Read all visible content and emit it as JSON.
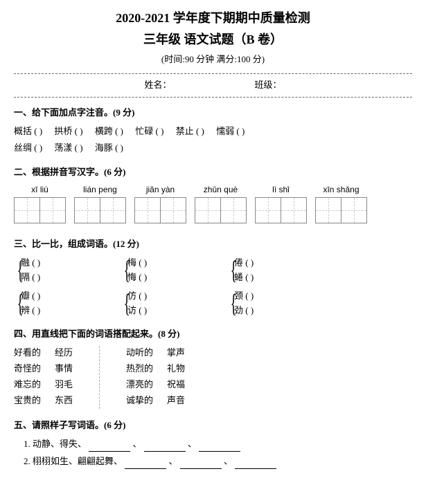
{
  "header": {
    "title1": "2020-2021 学年度下期期中质量检测",
    "title2": "三年级 语文试题（B 卷）",
    "meta": "(时间:90 分钟  满分:100 分)",
    "name_label": "姓名：",
    "class_label": "班级："
  },
  "q1": {
    "title": "一、给下面加点字注音。(9 分)",
    "row1": [
      "概括 (          )",
      "拱桥 (          )",
      "横跨 (          )",
      "忙碌 (          )",
      "禁止 (          )",
      "懦弱 (          )"
    ],
    "row2": [
      "丝绸 (          )",
      "荡漾 (          )",
      "海豚 (          )"
    ]
  },
  "q2": {
    "title": "二、根据拼音写汉字。(6 分)",
    "items": [
      {
        "py": "xī   liú"
      },
      {
        "py": "lián  peng"
      },
      {
        "py": "jiǎn  yàn"
      },
      {
        "py": "zhǔn  què"
      },
      {
        "py": "lì   shǐ"
      },
      {
        "py": "xīn  shǎng"
      }
    ]
  },
  "q3": {
    "title": "三、比一比，组成词语。(12 分)",
    "group1": [
      {
        "a": "融 (",
        "b": "隔 ("
      },
      {
        "a": "梅 (",
        "b": "悔 ("
      },
      {
        "a": "倦 (",
        "b": "蜷 ("
      }
    ],
    "group2": [
      {
        "a": "瓣 (",
        "b": "辨 ("
      },
      {
        "a": "仿 (",
        "b": "访 ("
      },
      {
        "a": "颈 (",
        "b": "劲 ("
      }
    ]
  },
  "q4": {
    "title": "四、用直线把下面的词语搭配起来。(8 分)",
    "left1": [
      "好看的",
      "奇怪的",
      "难忘的",
      "宝贵的"
    ],
    "left2": [
      "经历",
      "事情",
      "羽毛",
      "东西"
    ],
    "right1": [
      "动听的",
      "热烈的",
      "漂亮的",
      "诚挚的"
    ],
    "right2": [
      "掌声",
      "礼物",
      "祝福",
      "声音"
    ]
  },
  "q5": {
    "title": "五、请照样子写词语。(6 分)",
    "line1_a": "1. 动静、得失、",
    "line1_sep": "、",
    "line2_a": "2. 栩栩如生、翩翩起舞、",
    "line2_sep": "、"
  }
}
